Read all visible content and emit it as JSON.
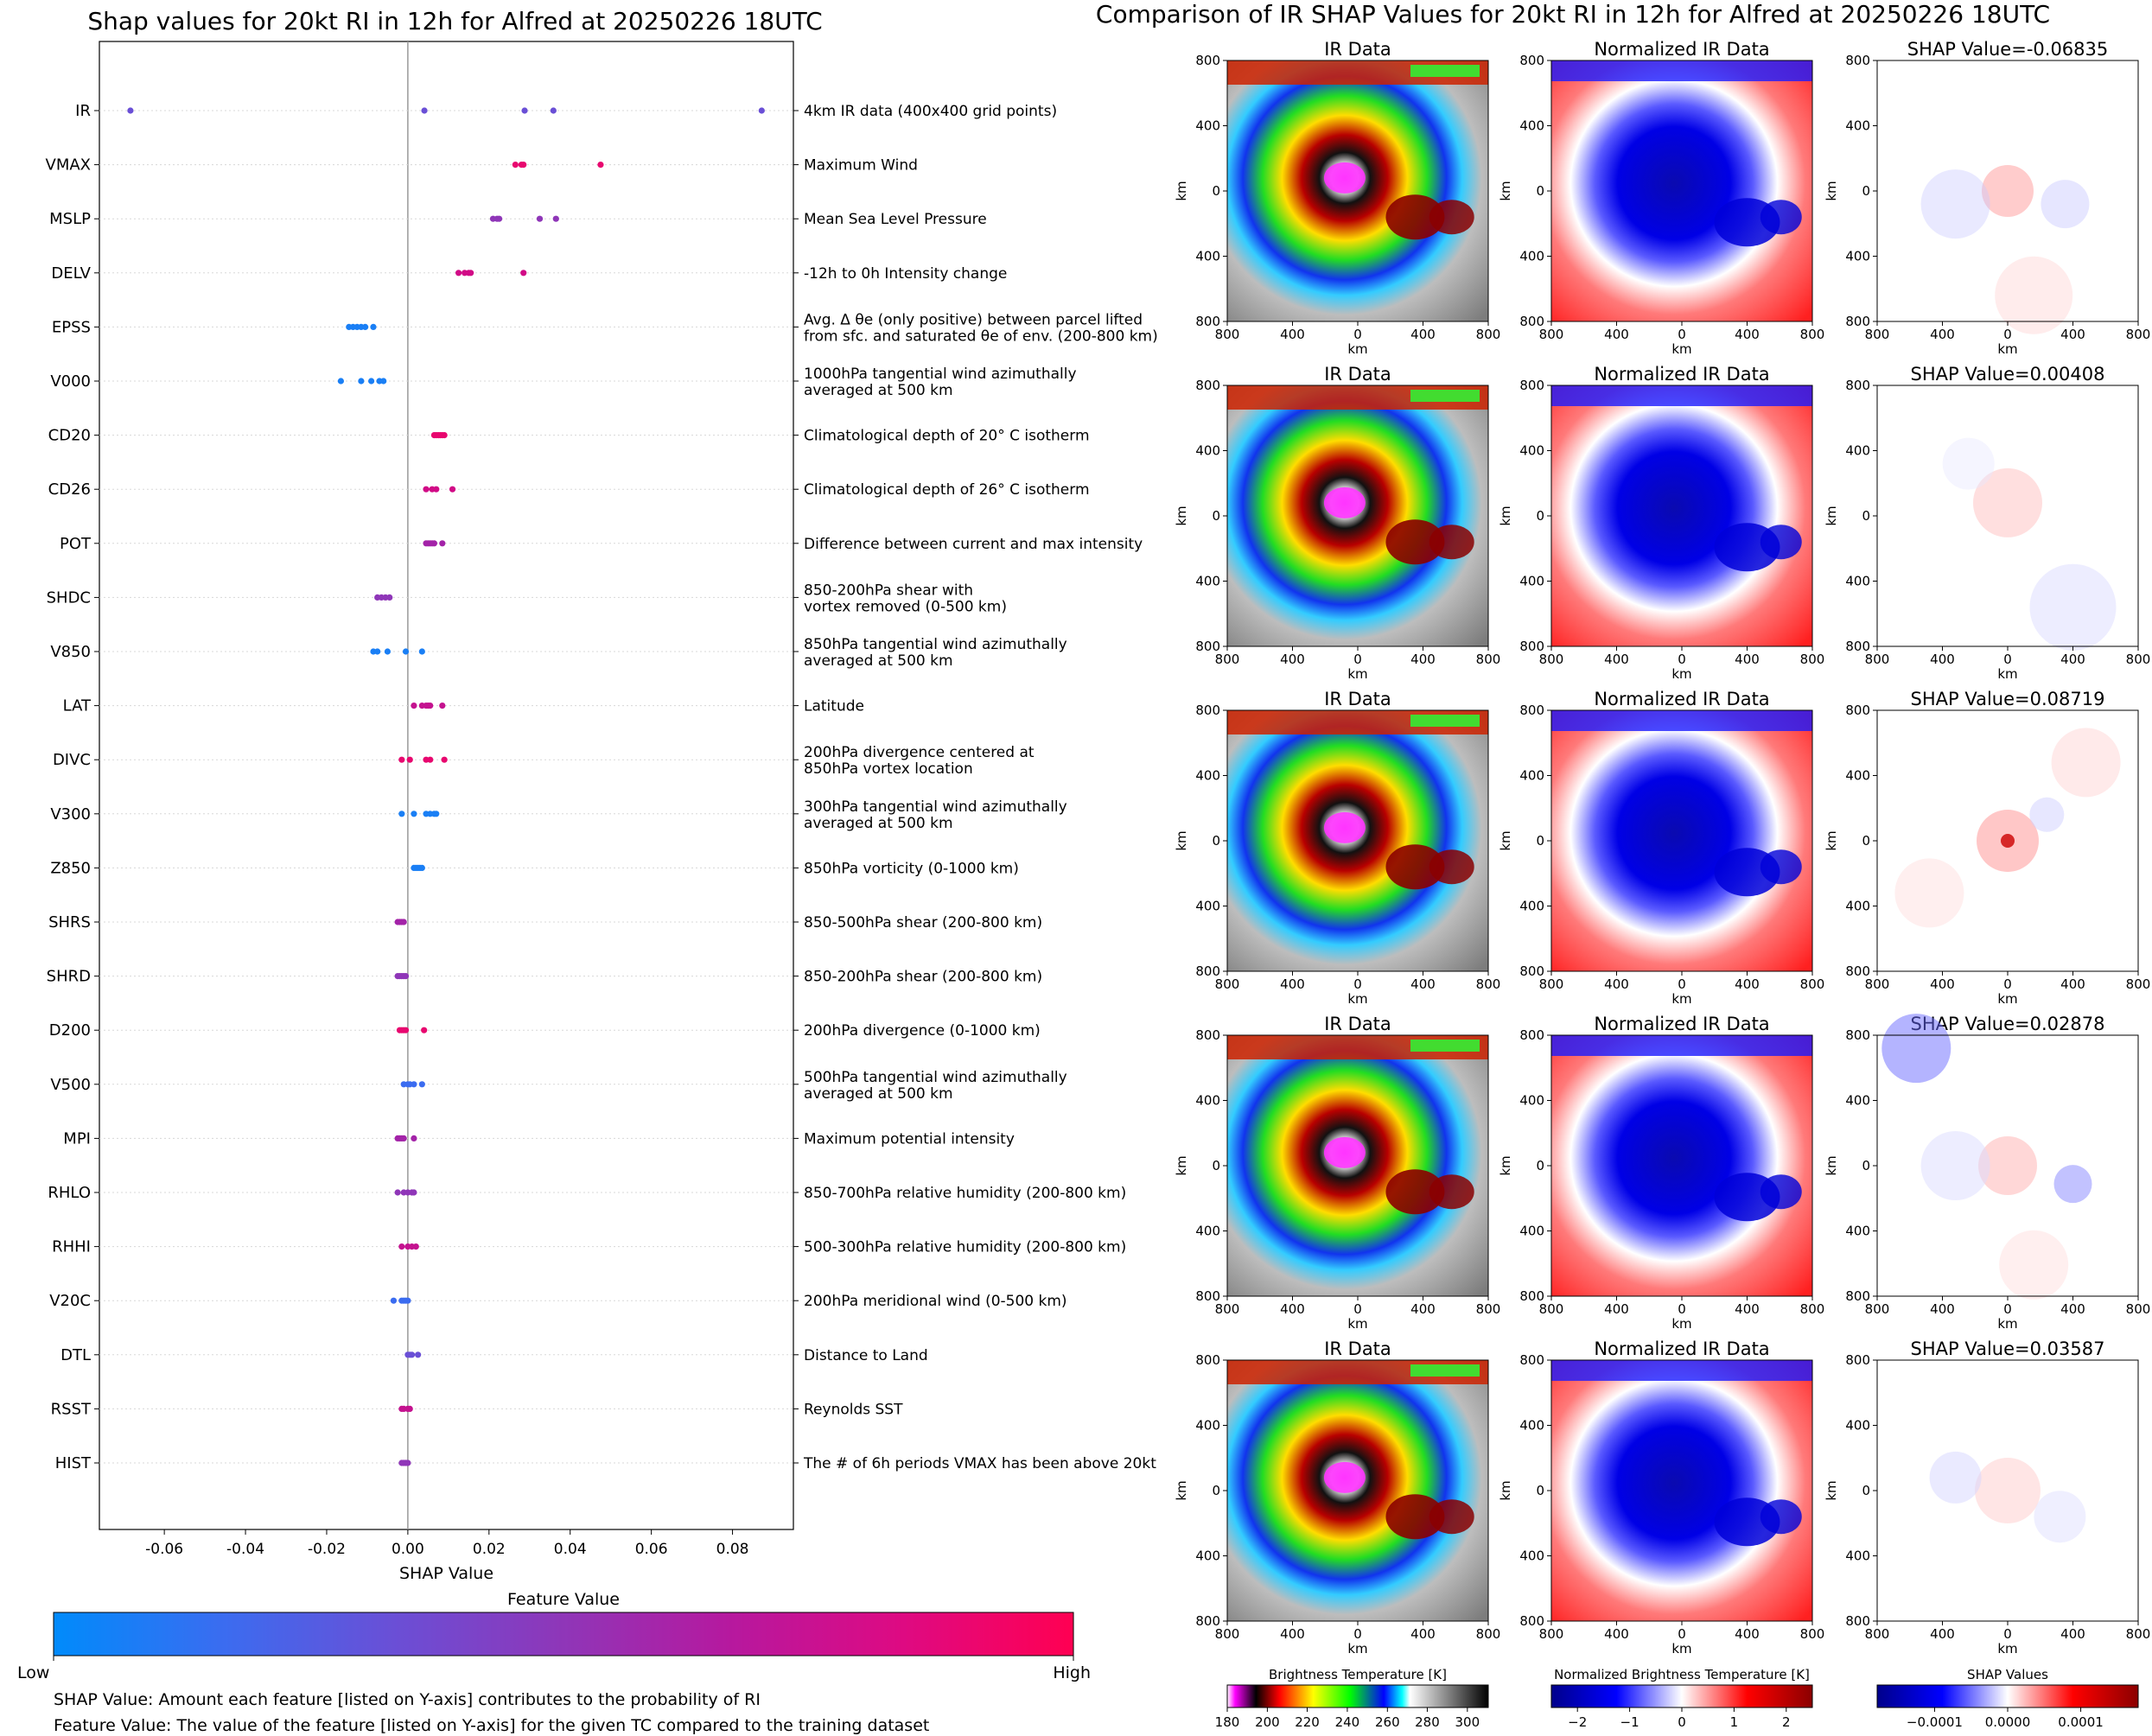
{
  "left_panel": {
    "title": "Shap values for 20kt RI in 12h for Alfred at 20250226 18UTC",
    "xlabel": "SHAP Value",
    "feature_value_label": "Feature Value",
    "low_label": "Low",
    "high_label": "High",
    "note_shap": "SHAP Value: Amount each feature [listed on Y-axis] contributes to the probability of RI",
    "note_feature": "Feature Value: The value of the feature [listed on Y-axis] for the given TC compared to the training dataset",
    "colorbar_colors": [
      "#008bfb",
      "#3b6cf0",
      "#6a4fd6",
      "#8f36b8",
      "#b7189e",
      "#de0a82",
      "#ff0052"
    ]
  },
  "chart_data": [
    {
      "type": "scatter",
      "title": "Shap values for 20kt RI in 12h for Alfred at 20250226 18UTC",
      "xlabel": "SHAP Value",
      "xlim": [
        -0.076,
        0.095
      ],
      "xticks": [
        "-0.06",
        "-0.04",
        "-0.02",
        "0.00",
        "0.02",
        "0.04",
        "0.06",
        "0.08"
      ],
      "xtick_values": [
        -0.06,
        -0.04,
        -0.02,
        0.0,
        0.02,
        0.04,
        0.06,
        0.08
      ],
      "colorbar": "Feature Value (Low to High)",
      "features": [
        {
          "name": "IR",
          "desc": [
            "4km IR data (400x400 grid points)"
          ],
          "color": "#6a4fd6",
          "shap": [
            -0.06835,
            0.00408,
            0.02878,
            0.03587,
            0.08719
          ]
        },
        {
          "name": "VMAX",
          "desc": [
            "Maximum Wind"
          ],
          "color": "#e8076f",
          "shap": [
            0.0265,
            0.028,
            0.0285,
            0.0475
          ]
        },
        {
          "name": "MSLP",
          "desc": [
            "Mean Sea Level Pressure"
          ],
          "color": "#8f36b8",
          "shap": [
            0.021,
            0.022,
            0.0225,
            0.0325,
            0.0365
          ]
        },
        {
          "name": "DELV",
          "desc": [
            "-12h to 0h Intensity change"
          ],
          "color": "#d10a86",
          "shap": [
            0.0125,
            0.014,
            0.015,
            0.0155,
            0.0285
          ]
        },
        {
          "name": "EPSS",
          "desc": [
            "Avg. Δ θe (only positive) between parcel lifted",
            "from sfc. and saturated θe of env. (200-800 km)"
          ],
          "color": "#1a7ff5",
          "shap": [
            -0.0145,
            -0.0135,
            -0.0125,
            -0.0115,
            -0.0105,
            -0.0085
          ]
        },
        {
          "name": "V000",
          "desc": [
            "1000hPa tangential wind azimuthally",
            "averaged at 500 km"
          ],
          "color": "#1a7ff5",
          "shap": [
            -0.0165,
            -0.0115,
            -0.009,
            -0.007,
            -0.006
          ]
        },
        {
          "name": "CD20",
          "desc": [
            "Climatological depth of 20° C isotherm"
          ],
          "color": "#e8076f",
          "shap": [
            0.0065,
            0.007,
            0.0075,
            0.008,
            0.0085,
            0.009
          ]
        },
        {
          "name": "CD26",
          "desc": [
            "Climatological depth of 26° C isotherm"
          ],
          "color": "#d10a86",
          "shap": [
            0.0045,
            0.006,
            0.007,
            0.011
          ]
        },
        {
          "name": "POT",
          "desc": [
            "Difference between current and max intensity"
          ],
          "color": "#a323a8",
          "shap": [
            0.0045,
            0.005,
            0.0055,
            0.006,
            0.0065,
            0.0085
          ]
        },
        {
          "name": "SHDC",
          "desc": [
            "850-200hPa shear with",
            "vortex removed (0-500 km)"
          ],
          "color": "#8f36b8",
          "shap": [
            -0.0075,
            -0.0065,
            -0.0055,
            -0.0045
          ]
        },
        {
          "name": "V850",
          "desc": [
            "850hPa tangential wind azimuthally",
            "averaged at 500 km"
          ],
          "color": "#1a7ff5",
          "shap": [
            -0.0085,
            -0.0075,
            -0.005,
            -0.0005,
            0.0035
          ]
        },
        {
          "name": "LAT",
          "desc": [
            "Latitude"
          ],
          "color": "#c4128f",
          "shap": [
            0.0015,
            0.0035,
            0.0045,
            0.005,
            0.0055,
            0.0085
          ]
        },
        {
          "name": "DIVC",
          "desc": [
            "200hPa divergence centered at",
            "850hPa vortex location"
          ],
          "color": "#e8076f",
          "shap": [
            -0.0015,
            0.0005,
            0.0045,
            0.0055,
            0.009
          ]
        },
        {
          "name": "V300",
          "desc": [
            "300hPa tangential wind azimuthally",
            "averaged at 500 km"
          ],
          "color": "#1a7ff5",
          "shap": [
            -0.0015,
            0.0015,
            0.0045,
            0.0055,
            0.0065,
            0.007
          ]
        },
        {
          "name": "Z850",
          "desc": [
            "850hPa vorticity (0-1000 km)"
          ],
          "color": "#1a7ff5",
          "shap": [
            0.0015,
            0.002,
            0.0025,
            0.003,
            0.0035
          ]
        },
        {
          "name": "SHRS",
          "desc": [
            "850-500hPa shear (200-800 km)"
          ],
          "color": "#a323a8",
          "shap": [
            -0.0025,
            -0.002,
            -0.0015,
            -0.001
          ]
        },
        {
          "name": "SHRD",
          "desc": [
            "850-200hPa shear (200-800 km)"
          ],
          "color": "#8f36b8",
          "shap": [
            -0.0025,
            -0.002,
            -0.0015,
            -0.001,
            -0.0005
          ]
        },
        {
          "name": "D200",
          "desc": [
            "200hPa divergence (0-1000 km)"
          ],
          "color": "#e8076f",
          "shap": [
            -0.002,
            -0.0015,
            -0.001,
            -0.0005,
            0.004
          ]
        },
        {
          "name": "V500",
          "desc": [
            "500hPa tangential wind azimuthally",
            "averaged at 500 km"
          ],
          "color": "#3b6cf0",
          "shap": [
            -0.001,
            0.0,
            0.0005,
            0.0015,
            0.0035
          ]
        },
        {
          "name": "MPI",
          "desc": [
            "Maximum potential intensity"
          ],
          "color": "#a323a8",
          "shap": [
            -0.0025,
            -0.002,
            -0.0015,
            -0.001,
            0.0015
          ]
        },
        {
          "name": "RHLO",
          "desc": [
            "850-700hPa relative humidity (200-800 km)"
          ],
          "color": "#8f36b8",
          "shap": [
            -0.0025,
            -0.001,
            0.0,
            0.001,
            0.0015
          ]
        },
        {
          "name": "RHHI",
          "desc": [
            "500-300hPa relative humidity (200-800 km)"
          ],
          "color": "#c4128f",
          "shap": [
            -0.0015,
            0.0,
            0.001,
            0.002
          ]
        },
        {
          "name": "V20C",
          "desc": [
            "200hPa meridional wind (0-500 km)"
          ],
          "color": "#3b6cf0",
          "shap": [
            -0.0035,
            -0.0015,
            -0.001,
            -0.0005,
            0.0
          ]
        },
        {
          "name": "DTL",
          "desc": [
            "Distance to Land"
          ],
          "color": "#6a4fd6",
          "shap": [
            0.0,
            0.0005,
            0.001,
            0.0025
          ]
        },
        {
          "name": "RSST",
          "desc": [
            "Reynolds SST"
          ],
          "color": "#c4128f",
          "shap": [
            -0.0015,
            -0.001,
            0.0,
            0.0005
          ]
        },
        {
          "name": "HIST",
          "desc": [
            "The # of 6h periods VMAX has been above 20kt"
          ],
          "color": "#8f36b8",
          "shap": [
            -0.0015,
            -0.001,
            -0.0005,
            0.0
          ]
        }
      ]
    },
    {
      "type": "heatmap",
      "title": "Comparison of IR SHAP Values for 20kt RI in 12h for Alfred at 20250226 18UTC",
      "columns": [
        {
          "title": "IR Data",
          "cmap": "IR brightness temperature"
        },
        {
          "title": "Normalized IR Data",
          "cmap": "blue-white-red"
        },
        {
          "title": "SHAP Value",
          "cmap": "blue-white-red"
        }
      ],
      "shap_values": [
        "-0.06835",
        "0.00408",
        "0.08719",
        "0.02878",
        "0.03587"
      ],
      "axis_ticks": [
        "800",
        "400",
        "0",
        "400",
        "800"
      ],
      "axis_label": "km",
      "colorbars": [
        {
          "label": "Brightness Temperature [K]",
          "ticks": [
            "180",
            "200",
            "220",
            "240",
            "260",
            "280",
            "300"
          ]
        },
        {
          "label": "Normalized Brightness Temperature [K]",
          "ticks": [
            "−2",
            "−1",
            "0",
            "1",
            "2"
          ]
        },
        {
          "label": "SHAP Values",
          "ticks": [
            "−0.0001",
            "0.0000",
            "0.0001"
          ]
        }
      ]
    }
  ]
}
